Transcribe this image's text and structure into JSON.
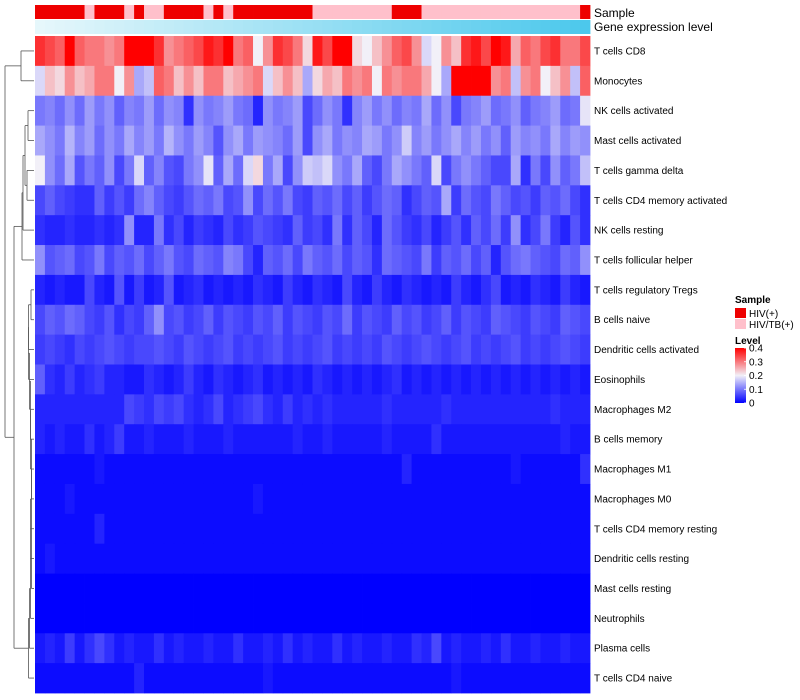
{
  "chart_data": {
    "type": "heatmap",
    "annotations": [
      {
        "name": "Sample",
        "type": "categorical"
      },
      {
        "name": "Gene expression level",
        "type": "gradient",
        "colors": [
          "#e6f7fb",
          "#4cc8ec"
        ]
      }
    ],
    "sample_annotation": [
      "HIV(+)",
      "HIV(+)",
      "HIV(+)",
      "HIV(+)",
      "HIV(+)",
      "HIV/TB(+)",
      "HIV(+)",
      "HIV(+)",
      "HIV(+)",
      "HIV/TB(+)",
      "HIV(+)",
      "HIV/TB(+)",
      "HIV/TB(+)",
      "HIV(+)",
      "HIV(+)",
      "HIV(+)",
      "HIV(+)",
      "HIV/TB(+)",
      "HIV(+)",
      "HIV/TB(+)",
      "HIV(+)",
      "HIV(+)",
      "HIV(+)",
      "HIV(+)",
      "HIV(+)",
      "HIV(+)",
      "HIV(+)",
      "HIV(+)",
      "HIV/TB(+)",
      "HIV/TB(+)",
      "HIV/TB(+)",
      "HIV/TB(+)",
      "HIV/TB(+)",
      "HIV/TB(+)",
      "HIV/TB(+)",
      "HIV/TB(+)",
      "HIV(+)",
      "HIV(+)",
      "HIV(+)",
      "HIV/TB(+)",
      "HIV/TB(+)",
      "HIV/TB(+)",
      "HIV/TB(+)",
      "HIV/TB(+)",
      "HIV/TB(+)",
      "HIV/TB(+)",
      "HIV/TB(+)",
      "HIV/TB(+)",
      "HIV/TB(+)",
      "HIV/TB(+)",
      "HIV/TB(+)",
      "HIV/TB(+)",
      "HIV/TB(+)",
      "HIV/TB(+)",
      "HIV/TB(+)",
      "HIV(+)"
    ],
    "rows": [
      "T cells CD8",
      "Monocytes",
      "NK cells activated",
      "Mast cells activated",
      "T cells gamma delta",
      "T cells CD4 memory activated",
      "NK cells resting",
      "T cells follicular helper",
      "T cells regulatory  Tregs",
      "B cells naive",
      "Dendritic cells activated",
      "Eosinophils",
      "Macrophages M2",
      "B cells memory",
      "Macrophages M1",
      "Macrophages M0",
      "T cells CD4 memory resting",
      "Dendritic cells resting",
      "Mast cells resting",
      "Neutrophils",
      "Plasma cells",
      "T cells CD4 naive"
    ],
    "values": [
      [
        0.36,
        0.34,
        0.32,
        0.4,
        0.32,
        0.3,
        0.3,
        0.28,
        0.3,
        0.4,
        0.4,
        0.4,
        0.36,
        0.28,
        0.3,
        0.32,
        0.34,
        0.38,
        0.36,
        0.4,
        0.3,
        0.32,
        0.2,
        0.28,
        0.36,
        0.34,
        0.3,
        0.22,
        0.38,
        0.34,
        0.4,
        0.4,
        0.22,
        0.2,
        0.24,
        0.28,
        0.32,
        0.34,
        0.28,
        0.18,
        0.2,
        0.28,
        0.24,
        0.36,
        0.38,
        0.34,
        0.4,
        0.38,
        0.26,
        0.32,
        0.3,
        0.34,
        0.36,
        0.3,
        0.3,
        0.34
      ],
      [
        0.18,
        0.24,
        0.22,
        0.28,
        0.24,
        0.26,
        0.3,
        0.3,
        0.2,
        0.28,
        0.14,
        0.16,
        0.32,
        0.3,
        0.24,
        0.28,
        0.24,
        0.3,
        0.3,
        0.24,
        0.26,
        0.28,
        0.3,
        0.18,
        0.24,
        0.28,
        0.24,
        0.14,
        0.22,
        0.26,
        0.24,
        0.3,
        0.28,
        0.3,
        0.2,
        0.3,
        0.28,
        0.3,
        0.3,
        0.26,
        0.2,
        0.14,
        0.4,
        0.4,
        0.4,
        0.4,
        0.28,
        0.3,
        0.16,
        0.28,
        0.3,
        0.2,
        0.24,
        0.28,
        0.16,
        0.32
      ],
      [
        0.1,
        0.11,
        0.09,
        0.12,
        0.09,
        0.13,
        0.1,
        0.12,
        0.08,
        0.11,
        0.1,
        0.13,
        0.09,
        0.12,
        0.11,
        0.04,
        0.12,
        0.1,
        0.11,
        0.13,
        0.1,
        0.09,
        0.03,
        0.12,
        0.1,
        0.11,
        0.13,
        0.06,
        0.09,
        0.12,
        0.1,
        0.04,
        0.11,
        0.13,
        0.1,
        0.12,
        0.09,
        0.11,
        0.1,
        0.14,
        0.09,
        0.12,
        0.06,
        0.1,
        0.11,
        0.13,
        0.09,
        0.1,
        0.12,
        0.08,
        0.1,
        0.11,
        0.13,
        0.09,
        0.1,
        0.19
      ],
      [
        0.14,
        0.12,
        0.1,
        0.15,
        0.11,
        0.13,
        0.09,
        0.12,
        0.1,
        0.14,
        0.11,
        0.13,
        0.1,
        0.15,
        0.12,
        0.1,
        0.13,
        0.11,
        0.07,
        0.12,
        0.14,
        0.1,
        0.13,
        0.12,
        0.11,
        0.09,
        0.13,
        0.06,
        0.12,
        0.14,
        0.1,
        0.12,
        0.11,
        0.14,
        0.13,
        0.1,
        0.12,
        0.17,
        0.11,
        0.13,
        0.1,
        0.12,
        0.14,
        0.11,
        0.13,
        0.1,
        0.12,
        0.08,
        0.13,
        0.11,
        0.12,
        0.1,
        0.14,
        0.11,
        0.13,
        0.12
      ],
      [
        0.2,
        0.12,
        0.09,
        0.14,
        0.07,
        0.1,
        0.08,
        0.12,
        0.06,
        0.1,
        0.18,
        0.08,
        0.11,
        0.07,
        0.06,
        0.1,
        0.12,
        0.19,
        0.08,
        0.14,
        0.09,
        0.18,
        0.22,
        0.1,
        0.14,
        0.06,
        0.12,
        0.17,
        0.16,
        0.18,
        0.12,
        0.1,
        0.14,
        0.08,
        0.06,
        0.1,
        0.14,
        0.12,
        0.1,
        0.08,
        0.18,
        0.06,
        0.1,
        0.12,
        0.1,
        0.08,
        0.06,
        0.06,
        0.14,
        0.04,
        0.1,
        0.06,
        0.12,
        0.08,
        0.1,
        0.16
      ],
      [
        0.06,
        0.08,
        0.06,
        0.05,
        0.04,
        0.04,
        0.08,
        0.05,
        0.07,
        0.05,
        0.09,
        0.11,
        0.08,
        0.06,
        0.05,
        0.07,
        0.09,
        0.08,
        0.1,
        0.06,
        0.07,
        0.12,
        0.06,
        0.09,
        0.07,
        0.1,
        0.06,
        0.05,
        0.08,
        0.07,
        0.09,
        0.06,
        0.08,
        0.05,
        0.07,
        0.09,
        0.08,
        0.04,
        0.06,
        0.08,
        0.07,
        0.14,
        0.05,
        0.09,
        0.07,
        0.06,
        0.1,
        0.08,
        0.06,
        0.07,
        0.05,
        0.08,
        0.07,
        0.09,
        0.06,
        0.04
      ],
      [
        0.04,
        0.03,
        0.03,
        0.04,
        0.03,
        0.03,
        0.04,
        0.03,
        0.04,
        0.12,
        0.03,
        0.03,
        0.1,
        0.04,
        0.06,
        0.03,
        0.05,
        0.04,
        0.03,
        0.06,
        0.04,
        0.05,
        0.07,
        0.06,
        0.05,
        0.04,
        0.08,
        0.05,
        0.06,
        0.04,
        0.1,
        0.04,
        0.08,
        0.06,
        0.03,
        0.09,
        0.07,
        0.05,
        0.04,
        0.06,
        0.03,
        0.05,
        0.07,
        0.04,
        0.08,
        0.06,
        0.09,
        0.05,
        0.12,
        0.04,
        0.06,
        0.1,
        0.05,
        0.03,
        0.07,
        0.04
      ],
      [
        0.12,
        0.07,
        0.08,
        0.09,
        0.06,
        0.07,
        0.1,
        0.06,
        0.08,
        0.07,
        0.09,
        0.06,
        0.08,
        0.1,
        0.07,
        0.06,
        0.09,
        0.08,
        0.07,
        0.11,
        0.1,
        0.06,
        0.03,
        0.08,
        0.07,
        0.09,
        0.06,
        0.1,
        0.08,
        0.07,
        0.09,
        0.06,
        0.08,
        0.07,
        0.04,
        0.09,
        0.08,
        0.07,
        0.06,
        0.1,
        0.05,
        0.08,
        0.07,
        0.09,
        0.06,
        0.08,
        0.03,
        0.07,
        0.09,
        0.1,
        0.08,
        0.07,
        0.06,
        0.09,
        0.08,
        0.12
      ],
      [
        0.03,
        0.02,
        0.03,
        0.02,
        0.02,
        0.06,
        0.03,
        0.02,
        0.07,
        0.02,
        0.05,
        0.02,
        0.03,
        0.07,
        0.02,
        0.03,
        0.04,
        0.02,
        0.03,
        0.02,
        0.03,
        0.02,
        0.04,
        0.03,
        0.02,
        0.05,
        0.03,
        0.02,
        0.04,
        0.03,
        0.02,
        0.06,
        0.03,
        0.02,
        0.05,
        0.03,
        0.02,
        0.04,
        0.03,
        0.02,
        0.03,
        0.02,
        0.05,
        0.03,
        0.02,
        0.04,
        0.06,
        0.02,
        0.03,
        0.02,
        0.04,
        0.03,
        0.02,
        0.05,
        0.03,
        0.02
      ],
      [
        0.06,
        0.08,
        0.07,
        0.09,
        0.08,
        0.06,
        0.05,
        0.07,
        0.04,
        0.06,
        0.05,
        0.08,
        0.12,
        0.06,
        0.07,
        0.05,
        0.06,
        0.08,
        0.05,
        0.07,
        0.06,
        0.05,
        0.07,
        0.06,
        0.08,
        0.05,
        0.07,
        0.06,
        0.05,
        0.07,
        0.06,
        0.09,
        0.05,
        0.07,
        0.06,
        0.05,
        0.08,
        0.06,
        0.07,
        0.05,
        0.06,
        0.08,
        0.05,
        0.07,
        0.06,
        0.05,
        0.08,
        0.07,
        0.06,
        0.05,
        0.07,
        0.06,
        0.05,
        0.08,
        0.07,
        0.06
      ],
      [
        0.05,
        0.06,
        0.05,
        0.04,
        0.06,
        0.05,
        0.06,
        0.07,
        0.06,
        0.05,
        0.06,
        0.06,
        0.07,
        0.06,
        0.05,
        0.07,
        0.06,
        0.05,
        0.06,
        0.07,
        0.05,
        0.06,
        0.05,
        0.06,
        0.07,
        0.05,
        0.06,
        0.05,
        0.06,
        0.07,
        0.05,
        0.06,
        0.05,
        0.06,
        0.05,
        0.07,
        0.06,
        0.05,
        0.06,
        0.07,
        0.06,
        0.05,
        0.06,
        0.07,
        0.05,
        0.06,
        0.05,
        0.06,
        0.07,
        0.05,
        0.06,
        0.05,
        0.06,
        0.07,
        0.06,
        0.05
      ],
      [
        0.08,
        0.04,
        0.03,
        0.05,
        0.03,
        0.04,
        0.05,
        0.03,
        0.03,
        0.02,
        0.02,
        0.04,
        0.03,
        0.02,
        0.03,
        0.05,
        0.03,
        0.02,
        0.04,
        0.03,
        0.02,
        0.03,
        0.04,
        0.02,
        0.03,
        0.02,
        0.03,
        0.02,
        0.04,
        0.03,
        0.02,
        0.03,
        0.02,
        0.03,
        0.02,
        0.03,
        0.04,
        0.02,
        0.03,
        0.02,
        0.03,
        0.02,
        0.03,
        0.02,
        0.03,
        0.02,
        0.03,
        0.02,
        0.03,
        0.02,
        0.03,
        0.02,
        0.03,
        0.02,
        0.03,
        0.02
      ],
      [
        0.03,
        0.03,
        0.03,
        0.03,
        0.03,
        0.03,
        0.03,
        0.03,
        0.03,
        0.06,
        0.05,
        0.04,
        0.06,
        0.05,
        0.06,
        0.04,
        0.03,
        0.04,
        0.06,
        0.03,
        0.04,
        0.05,
        0.06,
        0.04,
        0.03,
        0.05,
        0.03,
        0.04,
        0.03,
        0.04,
        0.03,
        0.03,
        0.03,
        0.03,
        0.03,
        0.04,
        0.03,
        0.03,
        0.03,
        0.03,
        0.03,
        0.04,
        0.03,
        0.03,
        0.03,
        0.03,
        0.03,
        0.03,
        0.03,
        0.03,
        0.03,
        0.03,
        0.04,
        0.03,
        0.03,
        0.03
      ],
      [
        0.03,
        0.02,
        0.03,
        0.02,
        0.02,
        0.04,
        0.02,
        0.03,
        0.05,
        0.02,
        0.02,
        0.03,
        0.02,
        0.02,
        0.02,
        0.03,
        0.02,
        0.02,
        0.02,
        0.03,
        0.02,
        0.02,
        0.02,
        0.02,
        0.02,
        0.02,
        0.03,
        0.02,
        0.02,
        0.03,
        0.02,
        0.02,
        0.02,
        0.02,
        0.02,
        0.03,
        0.02,
        0.02,
        0.02,
        0.02,
        0.04,
        0.02,
        0.02,
        0.02,
        0.02,
        0.02,
        0.02,
        0.02,
        0.02,
        0.02,
        0.02,
        0.02,
        0.02,
        0.03,
        0.02,
        0.02
      ],
      [
        0.01,
        0.01,
        0.01,
        0.01,
        0.01,
        0.01,
        0.02,
        0.01,
        0.01,
        0.01,
        0.01,
        0.01,
        0.01,
        0.01,
        0.01,
        0.01,
        0.01,
        0.01,
        0.01,
        0.01,
        0.01,
        0.01,
        0.01,
        0.01,
        0.01,
        0.01,
        0.01,
        0.01,
        0.01,
        0.01,
        0.01,
        0.01,
        0.01,
        0.01,
        0.01,
        0.01,
        0.01,
        0.03,
        0.01,
        0.01,
        0.01,
        0.01,
        0.01,
        0.01,
        0.01,
        0.01,
        0.01,
        0.01,
        0.02,
        0.01,
        0.01,
        0.01,
        0.01,
        0.01,
        0.01,
        0.04
      ],
      [
        0.01,
        0.01,
        0.01,
        0.02,
        0.01,
        0.01,
        0.01,
        0.01,
        0.01,
        0.01,
        0.01,
        0.01,
        0.01,
        0.01,
        0.01,
        0.01,
        0.01,
        0.01,
        0.01,
        0.01,
        0.01,
        0.01,
        0.02,
        0.01,
        0.01,
        0.01,
        0.01,
        0.01,
        0.01,
        0.01,
        0.01,
        0.01,
        0.01,
        0.01,
        0.01,
        0.01,
        0.01,
        0.01,
        0.01,
        0.01,
        0.01,
        0.01,
        0.01,
        0.01,
        0.01,
        0.01,
        0.01,
        0.01,
        0.01,
        0.01,
        0.01,
        0.01,
        0.01,
        0.01,
        0.01,
        0.01
      ],
      [
        0.01,
        0.01,
        0.01,
        0.01,
        0.01,
        0.01,
        0.03,
        0.01,
        0.01,
        0.01,
        0.01,
        0.01,
        0.01,
        0.01,
        0.01,
        0.01,
        0.01,
        0.01,
        0.01,
        0.01,
        0.01,
        0.01,
        0.01,
        0.01,
        0.01,
        0.01,
        0.01,
        0.01,
        0.01,
        0.01,
        0.01,
        0.01,
        0.01,
        0.01,
        0.01,
        0.01,
        0.01,
        0.01,
        0.01,
        0.01,
        0.01,
        0.01,
        0.01,
        0.01,
        0.01,
        0.01,
        0.01,
        0.01,
        0.01,
        0.01,
        0.01,
        0.01,
        0.01,
        0.01,
        0.01,
        0.01
      ],
      [
        0.01,
        0.02,
        0.01,
        0.01,
        0.01,
        0.01,
        0.01,
        0.01,
        0.01,
        0.01,
        0.01,
        0.01,
        0.01,
        0.01,
        0.01,
        0.01,
        0.01,
        0.01,
        0.01,
        0.01,
        0.01,
        0.01,
        0.01,
        0.01,
        0.01,
        0.01,
        0.01,
        0.01,
        0.01,
        0.01,
        0.01,
        0.01,
        0.01,
        0.01,
        0.01,
        0.01,
        0.01,
        0.01,
        0.01,
        0.01,
        0.01,
        0.01,
        0.01,
        0.01,
        0.01,
        0.01,
        0.01,
        0.01,
        0.01,
        0.01,
        0.01,
        0.01,
        0.01,
        0.01,
        0.01,
        0.01
      ],
      [
        0.0,
        0.0,
        0.0,
        0.0,
        0.0,
        0.0,
        0.0,
        0.0,
        0.0,
        0.0,
        0.0,
        0.0,
        0.0,
        0.0,
        0.0,
        0.0,
        0.0,
        0.0,
        0.0,
        0.0,
        0.0,
        0.0,
        0.0,
        0.0,
        0.0,
        0.0,
        0.0,
        0.0,
        0.0,
        0.0,
        0.0,
        0.0,
        0.0,
        0.0,
        0.0,
        0.0,
        0.0,
        0.0,
        0.0,
        0.0,
        0.0,
        0.0,
        0.0,
        0.0,
        0.0,
        0.0,
        0.0,
        0.0,
        0.0,
        0.0,
        0.0,
        0.0,
        0.0,
        0.0,
        0.0,
        0.0
      ],
      [
        0.0,
        0.0,
        0.0,
        0.0,
        0.0,
        0.0,
        0.0,
        0.0,
        0.0,
        0.0,
        0.0,
        0.0,
        0.0,
        0.0,
        0.0,
        0.0,
        0.0,
        0.0,
        0.0,
        0.0,
        0.0,
        0.0,
        0.0,
        0.0,
        0.0,
        0.0,
        0.0,
        0.0,
        0.0,
        0.0,
        0.0,
        0.0,
        0.0,
        0.0,
        0.0,
        0.0,
        0.0,
        0.0,
        0.0,
        0.0,
        0.0,
        0.0,
        0.0,
        0.0,
        0.0,
        0.0,
        0.0,
        0.0,
        0.0,
        0.0,
        0.0,
        0.0,
        0.0,
        0.0,
        0.0,
        0.0
      ],
      [
        0.02,
        0.03,
        0.02,
        0.05,
        0.02,
        0.04,
        0.06,
        0.04,
        0.02,
        0.03,
        0.02,
        0.02,
        0.04,
        0.02,
        0.03,
        0.02,
        0.02,
        0.03,
        0.02,
        0.02,
        0.04,
        0.02,
        0.02,
        0.03,
        0.02,
        0.04,
        0.02,
        0.03,
        0.02,
        0.02,
        0.04,
        0.02,
        0.03,
        0.02,
        0.02,
        0.03,
        0.02,
        0.02,
        0.04,
        0.03,
        0.06,
        0.02,
        0.03,
        0.02,
        0.02,
        0.03,
        0.02,
        0.04,
        0.02,
        0.02,
        0.03,
        0.02,
        0.02,
        0.03,
        0.02,
        0.02
      ],
      [
        0.01,
        0.01,
        0.01,
        0.01,
        0.01,
        0.01,
        0.01,
        0.01,
        0.01,
        0.01,
        0.03,
        0.01,
        0.01,
        0.01,
        0.01,
        0.01,
        0.01,
        0.01,
        0.01,
        0.01,
        0.01,
        0.01,
        0.01,
        0.02,
        0.01,
        0.01,
        0.01,
        0.01,
        0.01,
        0.01,
        0.01,
        0.01,
        0.01,
        0.01,
        0.01,
        0.01,
        0.01,
        0.01,
        0.01,
        0.01,
        0.01,
        0.01,
        0.02,
        0.01,
        0.01,
        0.01,
        0.01,
        0.01,
        0.01,
        0.01,
        0.01,
        0.01,
        0.01,
        0.01,
        0.01,
        0.01
      ]
    ],
    "legend_sample": {
      "title": "Sample",
      "items": [
        {
          "label": "HIV(+)",
          "color": "#ee0000"
        },
        {
          "label": "HIV/TB(+)",
          "color": "#ffc0cb"
        }
      ]
    },
    "legend_level": {
      "title": "Level",
      "ticks": [
        "0.4",
        "0.3",
        "0.2",
        "0.1",
        "0"
      ],
      "range": [
        0,
        0.4
      ],
      "colors": [
        "#0000ff",
        "#f2f0f8",
        "#ff0000"
      ]
    }
  }
}
